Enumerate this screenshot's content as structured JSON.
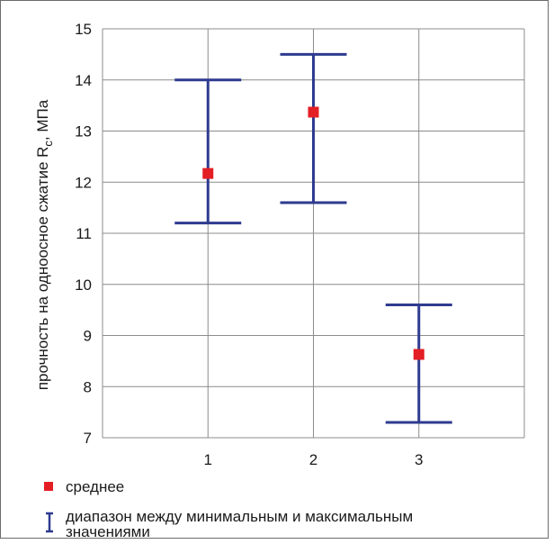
{
  "chart_data": {
    "type": "scatter",
    "title": "",
    "xlabel": "",
    "ylabel": "прочность на одноосное сжатие R",
    "ylabel_subscript": "с",
    "ylabel_suffix": ", МПа",
    "categories": [
      "1",
      "2",
      "3"
    ],
    "ylim": [
      7,
      15
    ],
    "yticks": [
      7,
      8,
      9,
      10,
      11,
      12,
      13,
      14,
      15
    ],
    "grid": true,
    "legend_position": "bottom-left",
    "series": [
      {
        "name": "среднее",
        "marker": "square",
        "color": "#e31e24",
        "values": [
          12.17,
          13.37,
          8.63
        ]
      },
      {
        "name": "диапазон между минимальным и максимальным значениями",
        "type": "error-range",
        "color": "#2e3b8f",
        "min": [
          11.2,
          11.6,
          7.3
        ],
        "max": [
          14.0,
          14.5,
          9.6
        ]
      }
    ]
  },
  "legend": {
    "mean_label": "среднее",
    "range_label_line1": "диапазон между минимальным и максимальным",
    "range_label_line2": "значениями"
  },
  "colors": {
    "mean": "#e31e24",
    "range": "#2e3b8f",
    "grid": "#8c8c8c"
  }
}
